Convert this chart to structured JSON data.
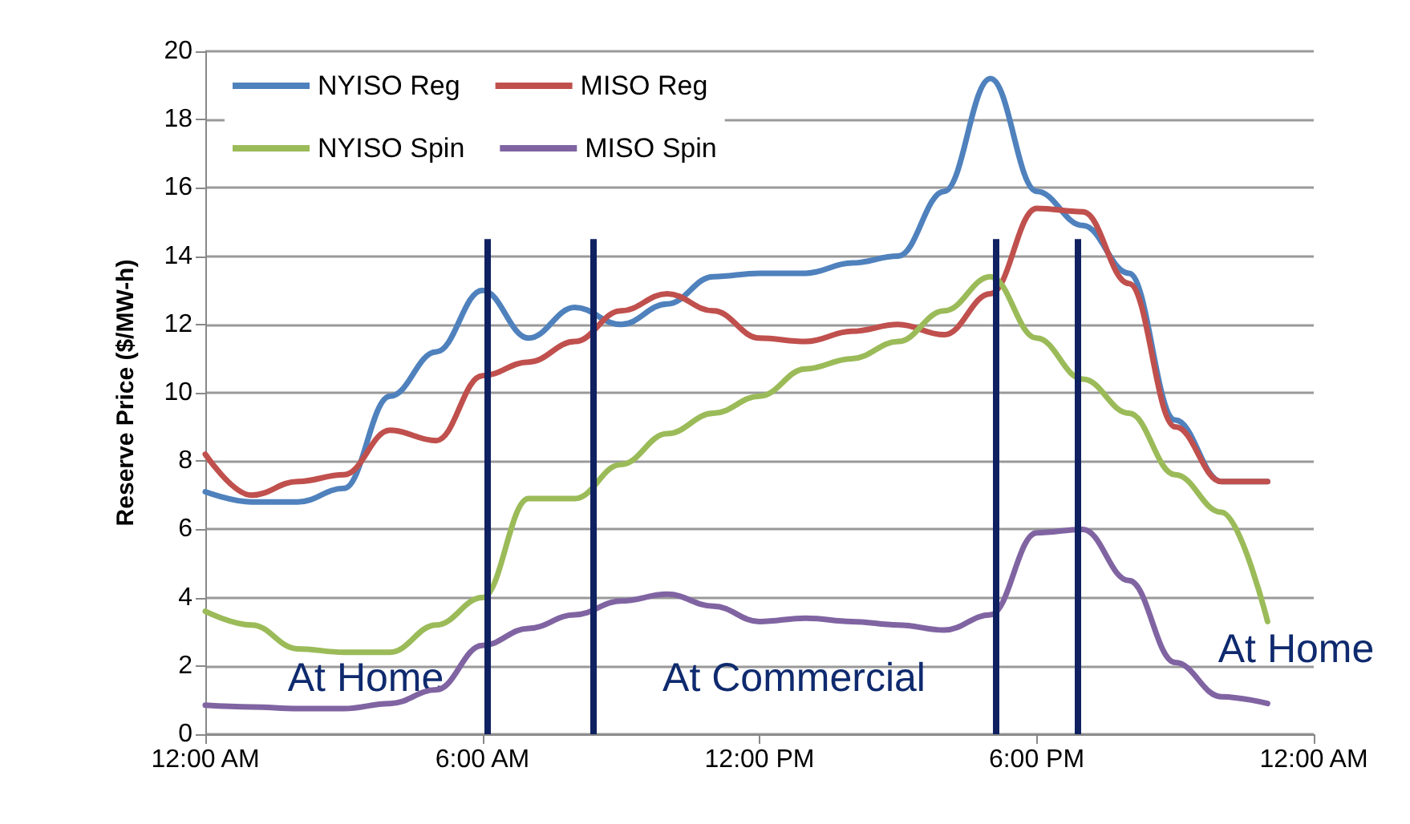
{
  "chart_data": {
    "type": "line",
    "ylabel": "Reserve Price ($/MW-h)",
    "x": [
      0,
      1,
      2,
      3,
      4,
      5,
      6,
      7,
      8,
      9,
      10,
      11,
      12,
      13,
      14,
      15,
      16,
      17,
      18,
      19,
      20,
      21,
      22,
      23
    ],
    "xlim": [
      0,
      24
    ],
    "xticks": [
      {
        "value": 0,
        "label": "12:00 AM"
      },
      {
        "value": 6,
        "label": "6:00 AM"
      },
      {
        "value": 12,
        "label": "12:00 PM"
      },
      {
        "value": 18,
        "label": "6:00 PM"
      },
      {
        "value": 24,
        "label": "12:00 AM"
      }
    ],
    "ylim": [
      0,
      20
    ],
    "yticks": [
      0,
      2,
      4,
      6,
      8,
      10,
      12,
      14,
      16,
      18,
      20
    ],
    "series": [
      {
        "name": "NYISO Reg",
        "color": "#4f81bd",
        "values": [
          7.1,
          6.8,
          6.8,
          7.2,
          9.9,
          11.2,
          13.0,
          11.6,
          12.5,
          12.0,
          12.6,
          13.4,
          13.5,
          13.5,
          13.8,
          14.0,
          15.9,
          19.2,
          15.9,
          14.9,
          13.5,
          9.2,
          7.4,
          7.4
        ]
      },
      {
        "name": "MISO Reg",
        "color": "#c0504d",
        "values": [
          8.2,
          7.0,
          7.4,
          7.6,
          8.9,
          8.6,
          10.5,
          10.9,
          11.5,
          12.4,
          12.9,
          12.4,
          11.6,
          11.5,
          11.8,
          12.0,
          11.7,
          12.9,
          15.4,
          15.3,
          13.2,
          9.0,
          7.4,
          7.4
        ]
      },
      {
        "name": "NYISO Spin",
        "color": "#9bbb59",
        "values": [
          3.6,
          3.2,
          2.5,
          2.4,
          2.4,
          3.2,
          4.0,
          6.9,
          6.9,
          7.9,
          8.8,
          9.4,
          9.9,
          10.7,
          11.0,
          11.5,
          12.4,
          13.4,
          11.6,
          10.4,
          9.4,
          7.6,
          6.5,
          3.3
        ]
      },
      {
        "name": "MISO Spin",
        "color": "#8064a2",
        "values": [
          0.85,
          0.8,
          0.75,
          0.75,
          0.9,
          1.3,
          2.6,
          3.1,
          3.5,
          3.9,
          4.1,
          3.75,
          3.3,
          3.4,
          3.3,
          3.2,
          3.05,
          3.5,
          5.9,
          6.0,
          4.5,
          2.1,
          1.1,
          0.9
        ]
      }
    ],
    "ref_lines": [
      {
        "axis": "x",
        "value": 6.1,
        "color": "#0f2160"
      },
      {
        "axis": "x",
        "value": 8.4,
        "color": "#0f2160"
      },
      {
        "axis": "x",
        "value": 17.1,
        "color": "#0f2160"
      },
      {
        "axis": "x",
        "value": 18.9,
        "color": "#0f2160"
      }
    ],
    "annotations": [
      "At Home",
      "At Commercial",
      "At Home"
    ],
    "grid": "y",
    "legend": "top left",
    "marker": "none",
    "line_style": "solid"
  }
}
